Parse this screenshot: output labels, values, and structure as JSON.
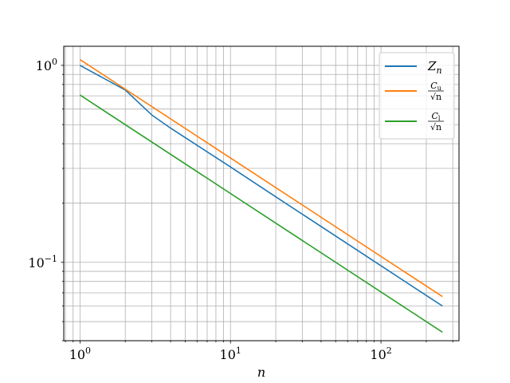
{
  "chart_data": {
    "type": "line",
    "x_scale": "log",
    "y_scale": "log",
    "xlabel": "n",
    "ylabel": "",
    "xlim": [
      0.78,
      330
    ],
    "ylim": [
      0.04,
      1.25
    ],
    "grid": true,
    "legend_position": "top-right",
    "x_ticks": [
      {
        "base": "10",
        "exp": "0",
        "value": 1
      },
      {
        "base": "10",
        "exp": "1",
        "value": 10
      },
      {
        "base": "10",
        "exp": "2",
        "value": 100
      }
    ],
    "y_ticks": [
      {
        "base": "10",
        "exp": "0",
        "value": 1
      },
      {
        "base": "10",
        "exp": "−1",
        "value": 0.1
      }
    ],
    "series": [
      {
        "name": "Z_n",
        "legend_main": "Z",
        "legend_sub": "n",
        "color": "#1f77b4",
        "x": [
          1,
          2,
          3,
          4,
          5,
          10,
          20,
          50,
          100,
          256
        ],
        "y": [
          1.0,
          0.75,
          0.56,
          0.48,
          0.43,
          0.305,
          0.215,
          0.136,
          0.096,
          0.06
        ]
      },
      {
        "name": "C_u/√n",
        "legend_num_main": "C",
        "legend_num_sub": "u",
        "legend_den": "√n",
        "color": "#ff7f0e",
        "x": [
          1,
          256
        ],
        "y": [
          1.07,
          0.067
        ]
      },
      {
        "name": "C_l/√n",
        "legend_num_main": "C",
        "legend_num_sub": "l",
        "legend_den": "√n",
        "color": "#2ca02c",
        "x": [
          1,
          256
        ],
        "y": [
          0.707,
          0.0442
        ]
      }
    ]
  }
}
